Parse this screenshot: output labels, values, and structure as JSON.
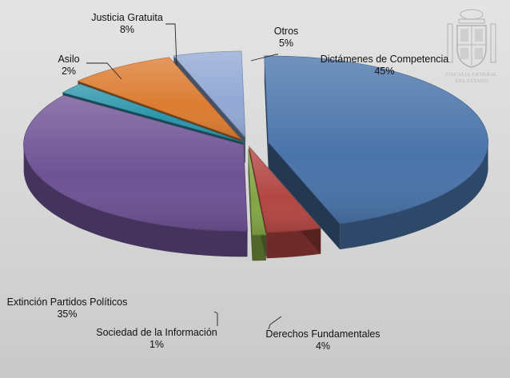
{
  "chart_data": {
    "type": "pie",
    "title": "",
    "slices": [
      {
        "label": "Dictámenes de Competencia",
        "pct_text": "45%",
        "value": 45,
        "color": "#4a74aa"
      },
      {
        "label": "Derechos Fundamentales",
        "pct_text": "4%",
        "value": 4,
        "color": "#b24643"
      },
      {
        "label": "Sociedad de la Información",
        "pct_text": "1%",
        "value": 1,
        "color": "#82a446"
      },
      {
        "label": "Extinción Partidos Políticos",
        "pct_text": "35%",
        "value": 35,
        "color": "#6e5294"
      },
      {
        "label": "Asilo",
        "pct_text": "2%",
        "value": 2,
        "color": "#2c95ab"
      },
      {
        "label": "Justicia Gratuita",
        "pct_text": "8%",
        "value": 8,
        "color": "#dc7c31"
      },
      {
        "label": "Otros",
        "pct_text": "5%",
        "value": 5,
        "color": "#92a9d4"
      }
    ]
  },
  "watermark": {
    "icon": "coat-of-arms-icon",
    "line1": "FISCALIA GENERAL",
    "line2": "DEL ESTADO"
  }
}
